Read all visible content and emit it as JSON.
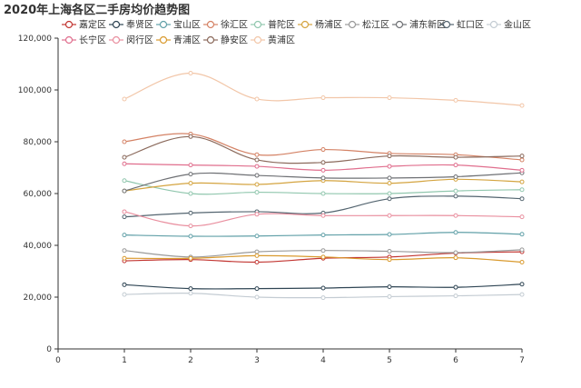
{
  "chart_data": {
    "type": "line",
    "title": "2020年上海各区二手房均价趋势图",
    "xlabel": "",
    "ylabel": "",
    "x": [
      0,
      1,
      2,
      3,
      4,
      5,
      6,
      7
    ],
    "xlim": [
      0,
      7
    ],
    "ylim": [
      0,
      120000
    ],
    "y_ticks": [
      0,
      20000,
      40000,
      60000,
      80000,
      100000,
      120000
    ],
    "y_tick_labels": [
      "0",
      "20,000",
      "40,000",
      "60,000",
      "80,000",
      "100,000",
      "120,000"
    ],
    "x_tick_labels": [
      "0",
      "1",
      "2",
      "3",
      "4",
      "5",
      "6",
      "7"
    ],
    "smooth": true,
    "grid": false,
    "legend_position": "top",
    "series": [
      {
        "name": "嘉定区",
        "color": "#c23531",
        "x": [
          1,
          2,
          3,
          4,
          5,
          6,
          7
        ],
        "values": [
          34000,
          34500,
          33500,
          35000,
          35500,
          37000,
          37500
        ]
      },
      {
        "name": "奉贤区",
        "color": "#2f4554",
        "x": [
          1,
          2,
          3,
          4,
          5,
          6,
          7
        ],
        "values": [
          24800,
          23300,
          23300,
          23500,
          24000,
          23800,
          25000
        ]
      },
      {
        "name": "宝山区",
        "color": "#61a0a8",
        "x": [
          1,
          2,
          3,
          4,
          5,
          6,
          7
        ],
        "values": [
          44000,
          43500,
          43600,
          44000,
          44200,
          45000,
          44300
        ]
      },
      {
        "name": "徐汇区",
        "color": "#d48265",
        "x": [
          1,
          2,
          3,
          4,
          5,
          6,
          7
        ],
        "values": [
          80000,
          83000,
          75000,
          77000,
          75500,
          75000,
          73000
        ]
      },
      {
        "name": "普陀区",
        "color": "#91c7ae",
        "x": [
          1,
          2,
          3,
          4,
          5,
          6,
          7
        ],
        "values": [
          65000,
          60000,
          60500,
          60000,
          60000,
          61000,
          61500
        ]
      },
      {
        "name": "杨浦区",
        "color": "#d4a440",
        "x": [
          1,
          2,
          3,
          4,
          5,
          6,
          7
        ],
        "values": [
          61000,
          64000,
          63500,
          65000,
          64000,
          65500,
          64500
        ]
      },
      {
        "name": "松江区",
        "color": "#9a9a9a",
        "x": [
          1,
          2,
          3,
          4,
          5,
          6,
          7
        ],
        "values": [
          38000,
          35500,
          37500,
          38000,
          37700,
          37200,
          38300
        ]
      },
      {
        "name": "浦东新区",
        "color": "#6e7074",
        "x": [
          1,
          2,
          3,
          4,
          5,
          6,
          7
        ],
        "values": [
          61000,
          67500,
          67000,
          66000,
          66000,
          66500,
          68000
        ]
      },
      {
        "name": "虹口区",
        "color": "#546570",
        "x": [
          1,
          2,
          3,
          4,
          5,
          6,
          7
        ],
        "values": [
          51000,
          52500,
          53000,
          52500,
          58000,
          59000,
          58000
        ]
      },
      {
        "name": "金山区",
        "color": "#c4ccd3",
        "x": [
          1,
          2,
          3,
          4,
          5,
          6,
          7
        ],
        "values": [
          21000,
          21500,
          20000,
          19800,
          20200,
          20500,
          21000
        ]
      },
      {
        "name": "长宁区",
        "color": "#e06e8d",
        "x": [
          1,
          2,
          3,
          4,
          5,
          6,
          7
        ],
        "values": [
          71500,
          71000,
          70500,
          69000,
          70500,
          71000,
          69000
        ]
      },
      {
        "name": "闵行区",
        "color": "#e98f9f",
        "x": [
          1,
          2,
          3,
          4,
          5,
          6,
          7
        ],
        "values": [
          53000,
          47500,
          52000,
          51500,
          51500,
          51500,
          51000
        ]
      },
      {
        "name": "青浦区",
        "color": "#d99a2e",
        "x": [
          1,
          2,
          3,
          4,
          5,
          6,
          7
        ],
        "values": [
          35000,
          35000,
          36000,
          35500,
          34500,
          35200,
          33500
        ]
      },
      {
        "name": "静安区",
        "color": "#8b6a5c",
        "x": [
          1,
          2,
          3,
          4,
          5,
          6,
          7
        ],
        "values": [
          74000,
          82000,
          73000,
          72000,
          74500,
          74000,
          74500
        ]
      },
      {
        "name": "黄浦区",
        "color": "#f2c6a8",
        "x": [
          1,
          2,
          3,
          4,
          5,
          6,
          7
        ],
        "values": [
          96500,
          106500,
          96500,
          97000,
          97000,
          96000,
          94000
        ]
      }
    ]
  }
}
